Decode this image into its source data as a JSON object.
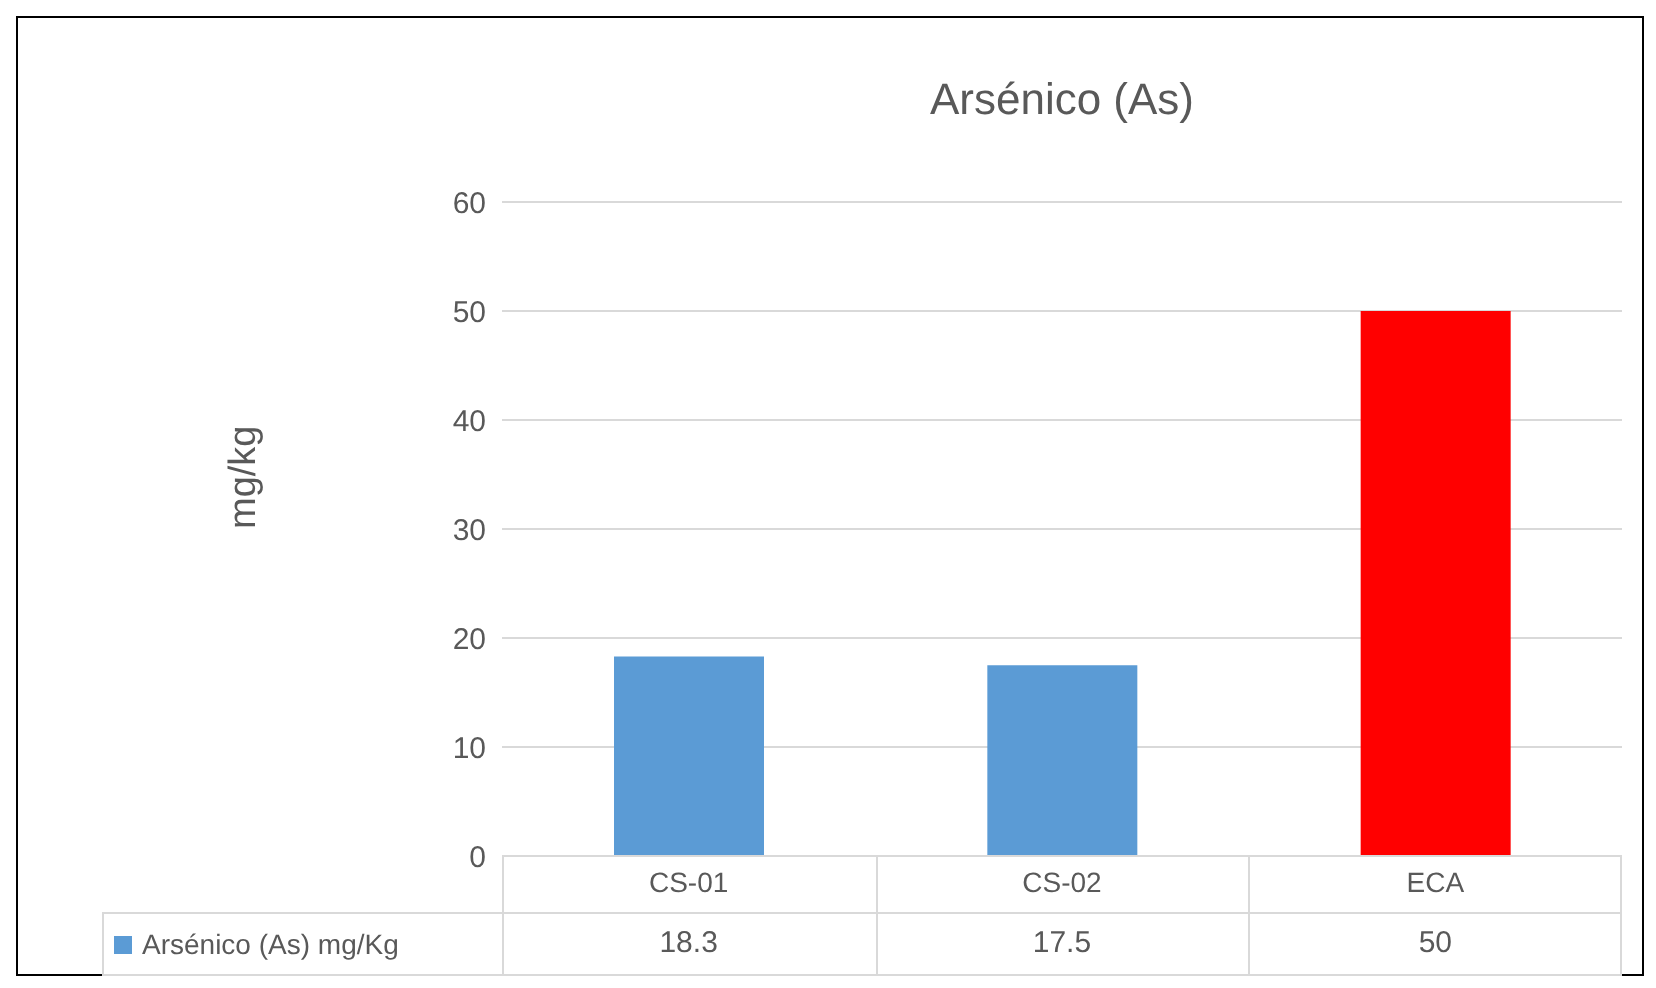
{
  "chart_data": {
    "type": "bar",
    "title": "Arsénico (As)",
    "ylabel": "mg/kg",
    "categories": [
      "CS-01",
      "CS-02",
      "ECA"
    ],
    "series": [
      {
        "name": "Arsénico (As) mg/Kg",
        "color": "#5b9bd5",
        "colors": [
          "#5b9bd5",
          "#5b9bd5",
          "#ff0000"
        ],
        "values": [
          18.3,
          17.5,
          50
        ]
      }
    ],
    "ylim": [
      0,
      60
    ],
    "yticks": [
      0,
      10,
      20,
      30,
      40,
      50,
      60
    ],
    "grid": "y",
    "legend": "bottom",
    "data_labels": true
  }
}
